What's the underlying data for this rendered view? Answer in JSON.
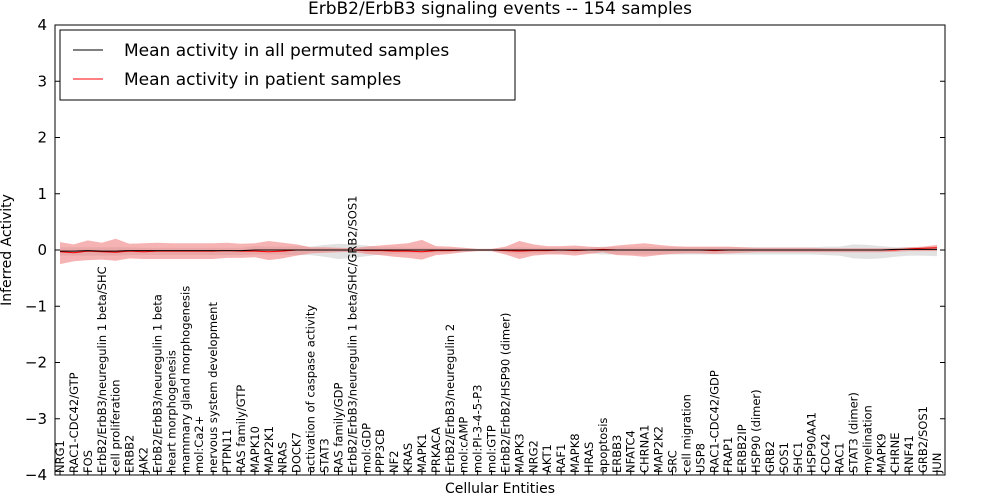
{
  "chart_data": {
    "type": "line",
    "title": "ErbB2/ErbB3 signaling events -- 154 samples",
    "xlabel": "Cellular Entities",
    "ylabel": "Inferred Activity",
    "ylim": [
      -4,
      4
    ],
    "yticks": [
      "−4",
      "−3",
      "−2",
      "−1",
      "0",
      "1",
      "2",
      "3",
      "4"
    ],
    "grid": false,
    "legend_position": "top-left",
    "categories": [
      "NRG1",
      "RAC1-CDC42/GTP",
      "FOS",
      "ErbB2/ErbB3/neuregulin 1 beta/SHC",
      "cell proliferation",
      "ERBB2",
      "JAK2",
      "ErbB2/ErbB3/neuregulin 1 beta",
      "heart morphogenesis",
      "mammary gland morphogenesis",
      "mol:Ca2+",
      "nervous system development",
      "PTPN11",
      "RAS family/GTP",
      "MAPK10",
      "MAP2K1",
      "NRAS",
      "DOCK7",
      "activation of caspase activity",
      "STAT3",
      "RAS family/GDP",
      "ErbB2/ErbB3/neuregulin 1 beta/SHC/GRB2/SOS1",
      "mol:GDP",
      "PPP3CB",
      "NF2",
      "KRAS",
      "MAPK1",
      "PRKACA",
      "ErbB2/ErbB3/neuregulin 2",
      "mol:cAMP",
      "mol:PI-3-4-5-P3",
      "mol:GTP",
      "ErbB2/ErbB2/HSP90 (dimer)",
      "MAPK3",
      "NRG2",
      "AKT1",
      "RAF1",
      "MAPK8",
      "HRAS",
      "apoptosis",
      "ERBB3",
      "NFATC4",
      "CHRNA1",
      "MAP2K2",
      "SRC",
      "cell migration",
      "USP8",
      "RAC1-CDC42/GDP",
      "FRAP1",
      "ERBB2IP",
      "HSP90 (dimer)",
      "GRB2",
      "SOS1",
      "SHC1",
      "HSP90AA1",
      "CDC42",
      "RAC1",
      "STAT3 (dimer)",
      "myelination",
      "MAPK9",
      "CHRNE",
      "RNF41",
      "GRB2/SOS1",
      "JUN"
    ],
    "series": [
      {
        "name": "Mean activity in all permuted samples",
        "color": "#000000",
        "values": [
          -0.02,
          -0.02,
          -0.01,
          -0.02,
          -0.02,
          -0.01,
          -0.01,
          -0.01,
          -0.01,
          -0.01,
          -0.01,
          -0.01,
          -0.01,
          -0.01,
          0,
          0,
          0,
          0,
          0,
          0,
          0,
          0,
          0,
          0,
          0,
          0,
          0,
          0,
          0,
          0,
          0,
          0,
          0,
          0,
          0,
          0,
          0,
          0,
          0,
          0,
          0,
          0,
          0,
          0,
          0,
          0,
          0,
          0,
          0,
          0,
          0,
          0,
          0,
          0,
          0,
          0,
          0,
          0,
          0,
          0,
          0.01,
          0.01,
          0.01,
          0.01
        ],
        "band_upper": [
          0.05,
          0.05,
          0.05,
          0.05,
          0.05,
          0.05,
          0.04,
          0.04,
          0.04,
          0.04,
          0.04,
          0.04,
          0.04,
          0.04,
          0.07,
          0.06,
          0.06,
          0.07,
          0.06,
          0.09,
          0.11,
          0.1,
          0.08,
          0.05,
          0.05,
          0.04,
          0.04,
          0.04,
          0.03,
          0.03,
          0.02,
          0.02,
          0.04,
          0.05,
          0.04,
          0.04,
          0.04,
          0.04,
          0.04,
          0.06,
          0.05,
          0.05,
          0.05,
          0.05,
          0.05,
          0.05,
          0.05,
          0.05,
          0.05,
          0.05,
          0.05,
          0.05,
          0.05,
          0.05,
          0.05,
          0.06,
          0.06,
          0.1,
          0.09,
          0.07,
          0.05,
          0.05,
          0.05,
          0.06
        ],
        "band_lower": [
          -0.1,
          -0.1,
          -0.1,
          -0.1,
          -0.1,
          -0.09,
          -0.09,
          -0.09,
          -0.09,
          -0.09,
          -0.09,
          -0.09,
          -0.09,
          -0.09,
          -0.08,
          -0.08,
          -0.08,
          -0.09,
          -0.09,
          -0.12,
          -0.16,
          -0.14,
          -0.11,
          -0.08,
          -0.07,
          -0.06,
          -0.06,
          -0.05,
          -0.04,
          -0.03,
          -0.02,
          -0.02,
          -0.05,
          -0.07,
          -0.06,
          -0.06,
          -0.06,
          -0.06,
          -0.06,
          -0.08,
          -0.08,
          -0.08,
          -0.08,
          -0.08,
          -0.08,
          -0.08,
          -0.08,
          -0.08,
          -0.08,
          -0.08,
          -0.08,
          -0.08,
          -0.08,
          -0.08,
          -0.08,
          -0.09,
          -0.1,
          -0.15,
          -0.16,
          -0.15,
          -0.12,
          -0.1,
          -0.1,
          -0.11
        ]
      },
      {
        "name": "Mean activity in patient samples",
        "color": "#ff0000",
        "band_color": "#f08080",
        "values": [
          -0.03,
          -0.05,
          -0.02,
          -0.03,
          -0.04,
          -0.02,
          -0.03,
          -0.02,
          -0.02,
          -0.02,
          -0.02,
          -0.02,
          -0.01,
          -0.02,
          -0.02,
          -0.03,
          -0.02,
          0,
          0,
          0,
          0,
          0,
          -0.01,
          -0.01,
          -0.02,
          -0.02,
          -0.03,
          -0.01,
          -0.01,
          0,
          0,
          0,
          -0.01,
          -0.02,
          -0.01,
          -0.01,
          0,
          -0.01,
          0,
          0.01,
          0,
          0,
          0,
          0,
          0,
          0,
          0,
          -0.01,
          0,
          0,
          0,
          0,
          0,
          0,
          0,
          0,
          0,
          0,
          0,
          0,
          0,
          0.02,
          0.03,
          0.04
        ],
        "band_upper": [
          0.14,
          0.1,
          0.17,
          0.13,
          0.2,
          0.11,
          0.12,
          0.13,
          0.12,
          0.12,
          0.12,
          0.12,
          0.13,
          0.11,
          0.12,
          0.16,
          0.13,
          0.1,
          0.05,
          0.05,
          0.04,
          0.03,
          0.06,
          0.08,
          0.1,
          0.12,
          0.18,
          0.07,
          0.06,
          0.04,
          0.02,
          0.02,
          0.06,
          0.16,
          0.1,
          0.07,
          0.07,
          0.08,
          0.06,
          0.05,
          0.08,
          0.1,
          0.12,
          0.09,
          0.07,
          0.06,
          0.06,
          0.06,
          0.06,
          0.05,
          0.04,
          0.04,
          0.04,
          0.04,
          0.04,
          0.03,
          0.03,
          0.03,
          0.03,
          0.03,
          0.03,
          0.05,
          0.06,
          0.09
        ],
        "band_lower": [
          -0.25,
          -0.2,
          -0.18,
          -0.17,
          -0.19,
          -0.15,
          -0.16,
          -0.16,
          -0.16,
          -0.16,
          -0.16,
          -0.16,
          -0.14,
          -0.14,
          -0.13,
          -0.18,
          -0.15,
          -0.1,
          -0.06,
          -0.05,
          -0.04,
          -0.03,
          -0.07,
          -0.09,
          -0.12,
          -0.14,
          -0.17,
          -0.09,
          -0.07,
          -0.04,
          -0.02,
          -0.02,
          -0.08,
          -0.16,
          -0.1,
          -0.08,
          -0.08,
          -0.1,
          -0.07,
          -0.04,
          -0.09,
          -0.1,
          -0.12,
          -0.09,
          -0.07,
          -0.06,
          -0.06,
          -0.07,
          -0.06,
          -0.05,
          -0.04,
          -0.04,
          -0.04,
          -0.04,
          -0.04,
          -0.04,
          -0.04,
          -0.04,
          -0.04,
          -0.04,
          -0.03,
          -0.02,
          -0.02,
          -0.02
        ]
      }
    ]
  }
}
